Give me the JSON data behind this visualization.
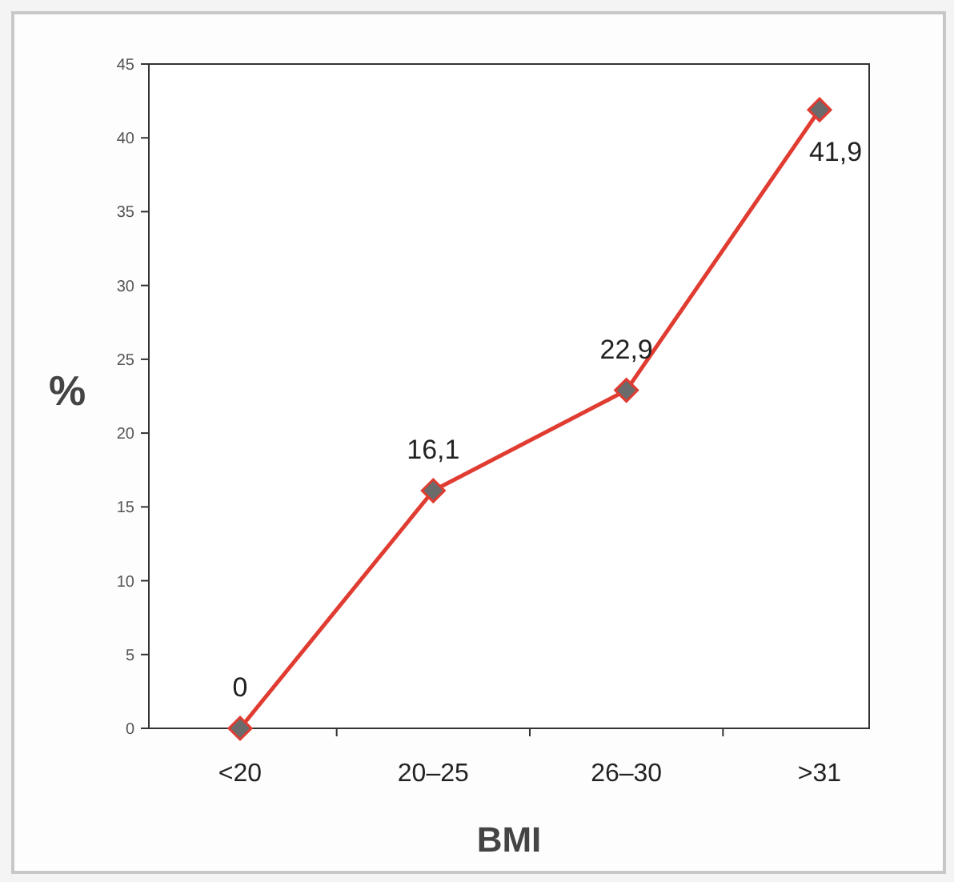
{
  "chart_data": {
    "type": "line",
    "xlabel": "BMI",
    "ylabel": "%",
    "categories": [
      "<20",
      "20–25",
      "26–30",
      ">31"
    ],
    "series": [
      {
        "color": "#e03c31",
        "values": [
          0,
          16.1,
          22.9,
          41.9
        ],
        "value_labels": [
          "0",
          "16,1",
          "22,9",
          "41,9"
        ]
      }
    ],
    "ylim": [
      0,
      45
    ],
    "yticks": [
      0,
      5,
      10,
      15,
      20,
      25,
      30,
      35,
      40,
      45
    ],
    "grid": false,
    "marker": "diamond",
    "line_style": "solid"
  }
}
